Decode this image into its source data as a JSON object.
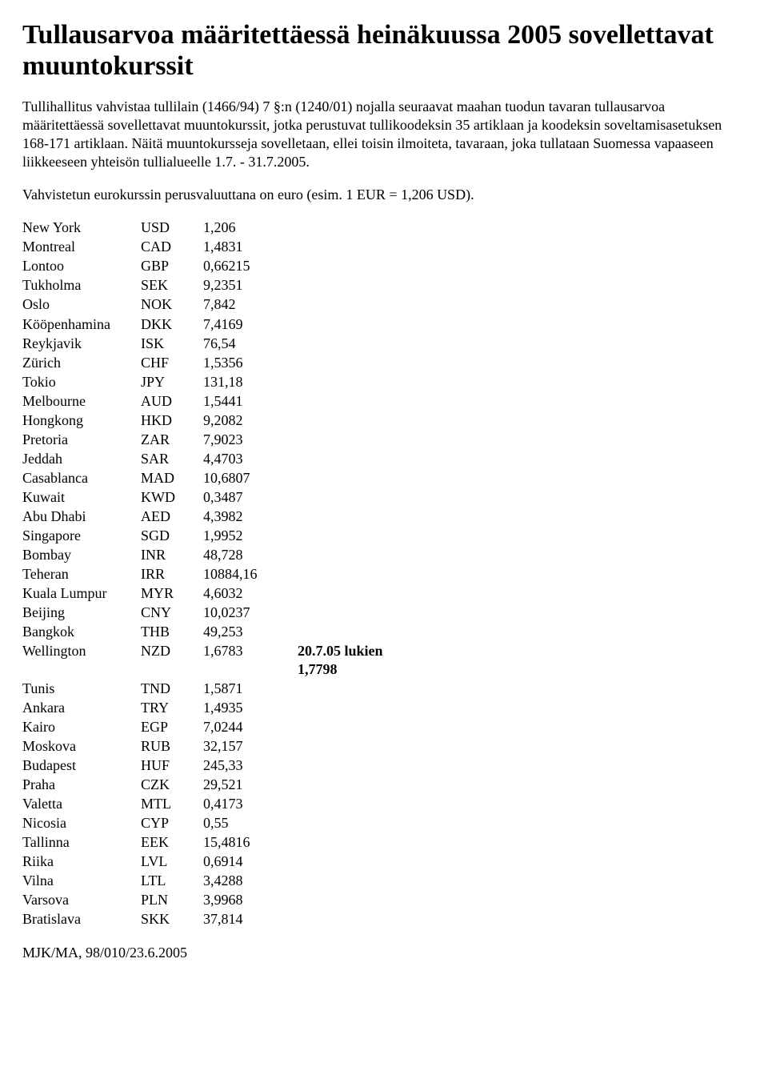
{
  "title": "Tullausarvoa määritettäessä heinäkuussa 2005 sovellettavat muuntokurssit",
  "para1": "Tullihallitus vahvistaa tullilain (1466/94) 7 §:n (1240/01) nojalla seuraavat maahan tuodun tavaran tullausarvoa määritettäessä sovellettavat muuntokurssit, jotka perustuvat tullikoodeksin 35 artiklaan ja koodeksin soveltamisasetuksen 168-171 artiklaan. Näitä muuntokursseja sovelletaan, ellei toisin ilmoiteta, tavaraan, joka tullataan Suomessa vapaaseen liikkeeseen yhteisön tullialueelle 1.7. - 31.7.2005.",
  "para2": "Vahvistetun eurokurssin perusvaluuttana on euro (esim. 1 EUR = 1,206 USD).",
  "rows": [
    {
      "city": "New York",
      "code": "USD",
      "rate": "1,206",
      "note": ""
    },
    {
      "city": "Montreal",
      "code": "CAD",
      "rate": "1,4831",
      "note": ""
    },
    {
      "city": "Lontoo",
      "code": "GBP",
      "rate": "0,66215",
      "note": ""
    },
    {
      "city": "Tukholma",
      "code": "SEK",
      "rate": "9,2351",
      "note": ""
    },
    {
      "city": "Oslo",
      "code": "NOK",
      "rate": "7,842",
      "note": ""
    },
    {
      "city": "Kööpenhamina",
      "code": "DKK",
      "rate": "7,4169",
      "note": ""
    },
    {
      "city": "Reykjavik",
      "code": "ISK",
      "rate": "76,54",
      "note": ""
    },
    {
      "city": "Zürich",
      "code": "CHF",
      "rate": "1,5356",
      "note": ""
    },
    {
      "city": "Tokio",
      "code": "JPY",
      "rate": "131,18",
      "note": ""
    },
    {
      "city": "Melbourne",
      "code": "AUD",
      "rate": "1,5441",
      "note": ""
    },
    {
      "city": "Hongkong",
      "code": "HKD",
      "rate": "9,2082",
      "note": ""
    },
    {
      "city": "Pretoria",
      "code": "ZAR",
      "rate": "7,9023",
      "note": ""
    },
    {
      "city": "Jeddah",
      "code": "SAR",
      "rate": "4,4703",
      "note": ""
    },
    {
      "city": "Casablanca",
      "code": "MAD",
      "rate": "10,6807",
      "note": ""
    },
    {
      "city": "Kuwait",
      "code": "KWD",
      "rate": "0,3487",
      "note": ""
    },
    {
      "city": "Abu Dhabi",
      "code": "AED",
      "rate": "4,3982",
      "note": ""
    },
    {
      "city": "Singapore",
      "code": "SGD",
      "rate": "1,9952",
      "note": ""
    },
    {
      "city": "Bombay",
      "code": "INR",
      "rate": "48,728",
      "note": ""
    },
    {
      "city": "Teheran",
      "code": "IRR",
      "rate": "10884,16",
      "note": ""
    },
    {
      "city": "Kuala Lumpur",
      "code": "MYR",
      "rate": "4,6032",
      "note": ""
    },
    {
      "city": "Beijing",
      "code": "CNY",
      "rate": "10,0237",
      "note": ""
    },
    {
      "city": "Bangkok",
      "code": "THB",
      "rate": "49,253",
      "note": ""
    },
    {
      "city": "Wellington",
      "code": "NZD",
      "rate": "1,6783",
      "note": "20.7.05 lukien 1,7798"
    },
    {
      "city": "Tunis",
      "code": "TND",
      "rate": "1,5871",
      "note": ""
    },
    {
      "city": "Ankara",
      "code": "TRY",
      "rate": "1,4935",
      "note": ""
    },
    {
      "city": "Kairo",
      "code": "EGP",
      "rate": "7,0244",
      "note": ""
    },
    {
      "city": "Moskova",
      "code": "RUB",
      "rate": "32,157",
      "note": ""
    },
    {
      "city": "Budapest",
      "code": "HUF",
      "rate": "245,33",
      "note": ""
    },
    {
      "city": "Praha",
      "code": "CZK",
      "rate": "29,521",
      "note": ""
    },
    {
      "city": "Valetta",
      "code": "MTL",
      "rate": "0,4173",
      "note": ""
    },
    {
      "city": "Nicosia",
      "code": "CYP",
      "rate": "0,55",
      "note": ""
    },
    {
      "city": "Tallinna",
      "code": "EEK",
      "rate": "15,4816",
      "note": ""
    },
    {
      "city": "Riika",
      "code": "LVL",
      "rate": "0,6914",
      "note": ""
    },
    {
      "city": "Vilna",
      "code": "LTL",
      "rate": "3,4288",
      "note": ""
    },
    {
      "city": "Varsova",
      "code": "PLN",
      "rate": "3,9968",
      "note": ""
    },
    {
      "city": "Bratislava",
      "code": "SKK",
      "rate": "37,814",
      "note": ""
    }
  ],
  "footer": "MJK/MA, 98/010/23.6.2005"
}
